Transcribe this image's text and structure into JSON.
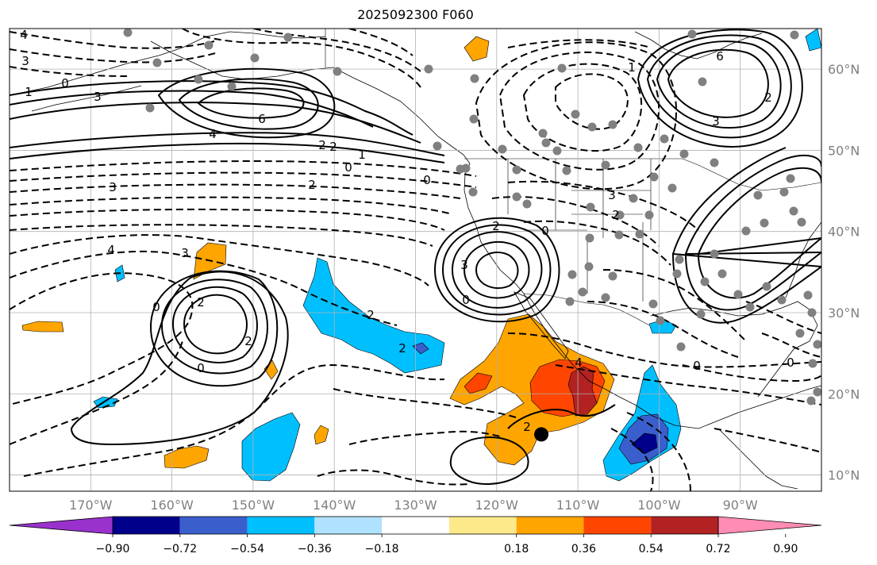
{
  "title": "2025092300 F060",
  "map": {
    "extent": {
      "lon_min": -180,
      "lon_max": -80,
      "lat_min": 8,
      "lat_max": 65
    },
    "lon_ticks": [
      -170,
      -160,
      -150,
      -140,
      -130,
      -120,
      -110,
      -100,
      -90
    ],
    "lon_labels": [
      "170°W",
      "160°W",
      "150°W",
      "140°W",
      "130°W",
      "120°W",
      "110°W",
      "100°W",
      "90°W"
    ],
    "lat_ticks": [
      10,
      20,
      30,
      40,
      50,
      60
    ],
    "lat_labels": [
      "10°N",
      "20°N",
      "30°N",
      "40°N",
      "50°N",
      "60°N"
    ],
    "gridlines": true,
    "marker": {
      "lon": -114.5,
      "lat": 15
    }
  },
  "contour_labels": [
    "4",
    "3",
    "1",
    "0",
    "3",
    "6",
    "4",
    "2",
    "2",
    "0",
    "1",
    "0",
    "2",
    "3",
    "4",
    "3",
    "2",
    "0",
    "2",
    "2",
    "2",
    "0",
    "3",
    "2",
    "6",
    "3",
    "3",
    "2",
    "0",
    "0",
    "1",
    "2",
    "0",
    "0",
    "4",
    "2"
  ],
  "colorbar": {
    "colors": [
      "#9932cc",
      "#00008b",
      "#3a5fcd",
      "#00bfff",
      "#b0e2ff",
      "#ffffff",
      "#fce98a",
      "#ffa500",
      "#ff4500",
      "#b22222",
      "#ff8cb4"
    ],
    "tick_labels": [
      "−0.90",
      "−0.72",
      "−0.54",
      "−0.36",
      "−0.18",
      "0.18",
      "0.36",
      "0.54",
      "0.72",
      "0.90"
    ],
    "extend": "both"
  },
  "colors": {
    "grid": "#b0b0b0",
    "tick_text": "#808080",
    "dots": "#808080",
    "marker": "#000000"
  }
}
